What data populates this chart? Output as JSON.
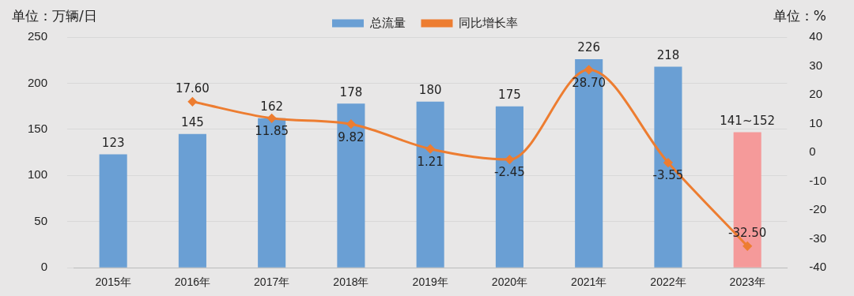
{
  "chart_data": {
    "type": "bar",
    "ylabel": "单位：万辆/日",
    "y2label": "单位：%",
    "categories": [
      "2015年",
      "2016年",
      "2017年",
      "2018年",
      "2019年",
      "2020年",
      "2021年",
      "2022年",
      "2023年"
    ],
    "series": [
      {
        "name": "总流量",
        "color": "#6a9fd4",
        "colors": [
          "#6a9fd4",
          "#6a9fd4",
          "#6a9fd4",
          "#6a9fd4",
          "#6a9fd4",
          "#6a9fd4",
          "#6a9fd4",
          "#6a9fd4",
          "#f59a9a"
        ],
        "values": [
          123,
          145,
          162,
          178,
          180,
          175,
          226,
          218,
          147
        ],
        "value_labels": [
          "123",
          "145",
          "162",
          "178",
          "180",
          "175",
          "226",
          "218",
          null
        ]
      },
      {
        "name": "同比增长率",
        "type": "line",
        "axis": "y2",
        "color": "#ed7d31",
        "values": [
          null,
          17.6,
          11.85,
          9.82,
          1.21,
          -2.45,
          28.7,
          -3.55,
          -32.5
        ],
        "value_labels": [
          null,
          "17.60",
          "11.85",
          "9.82",
          "1.21",
          "-2.45",
          "28.70",
          "-3.55",
          "-32.50"
        ]
      }
    ],
    "annotations": [
      {
        "text": "141~152",
        "x": "2023年",
        "y": 147
      }
    ],
    "ylim": [
      0,
      250
    ],
    "yticks": [
      0,
      50,
      100,
      150,
      200,
      250
    ],
    "y2lim": [
      -40,
      40
    ],
    "y2ticks": [
      -40,
      -30,
      -20,
      -10,
      0,
      10,
      20,
      30,
      40
    ],
    "grid": "y",
    "legend": "top",
    "marker": "diamond",
    "line_style": "solid"
  }
}
